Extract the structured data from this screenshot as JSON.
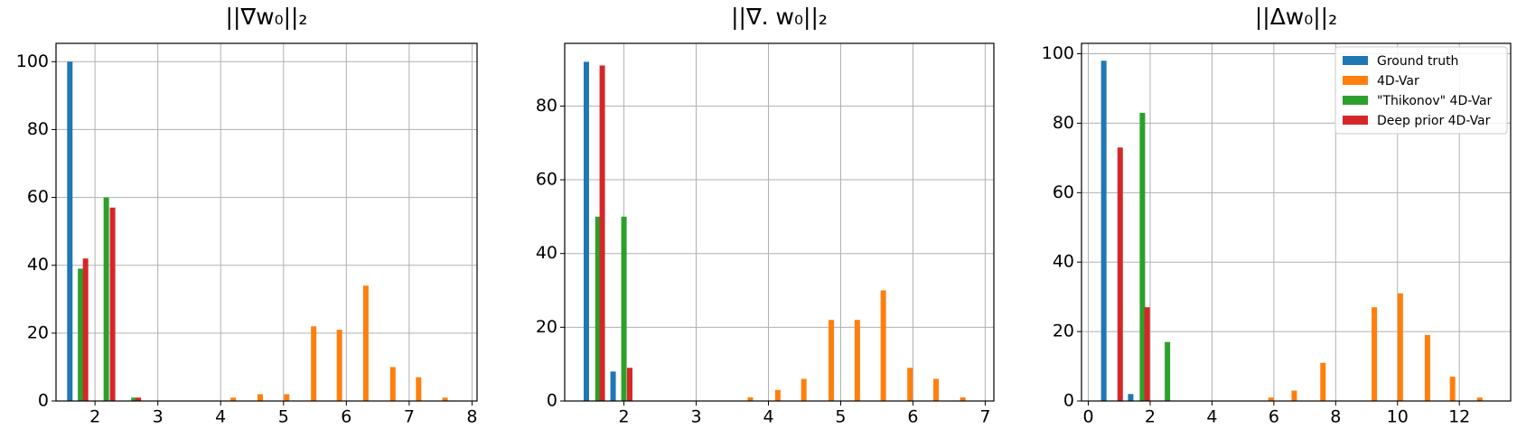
{
  "chart_data": [
    {
      "type": "bar",
      "title": "||∇w₀||₂",
      "xlim": [
        1.38,
        8.08
      ],
      "ylim": [
        0,
        105.4
      ],
      "xticks": [
        2,
        3,
        4,
        5,
        6,
        7,
        8
      ],
      "yticks": [
        0,
        20,
        40,
        60,
        80,
        100
      ],
      "grid": true,
      "series": [
        {
          "color": "#1f77b4",
          "x": [
            1.6
          ],
          "values": [
            100
          ]
        },
        {
          "color": "#ff7f0e",
          "x": [
            4.2,
            4.63,
            5.05,
            5.48,
            5.89,
            6.31,
            6.74,
            7.15,
            7.57
          ],
          "values": [
            1,
            2,
            2,
            22,
            21,
            34,
            10,
            7,
            1
          ]
        },
        {
          "color": "#2ca02c",
          "x": [
            1.77,
            2.18,
            2.62
          ],
          "values": [
            39,
            60,
            1
          ]
        },
        {
          "color": "#d62728",
          "x": [
            1.85,
            2.28,
            2.69
          ],
          "values": [
            42,
            57,
            1
          ]
        }
      ]
    },
    {
      "type": "bar",
      "title": "||∇. w₀||₂",
      "xlim": [
        1.18,
        7.12
      ],
      "ylim": [
        0,
        97
      ],
      "xticks": [
        2,
        3,
        4,
        5,
        6,
        7
      ],
      "yticks": [
        0,
        20,
        40,
        60,
        80
      ],
      "grid": true,
      "series": [
        {
          "color": "#1f77b4",
          "x": [
            1.48,
            1.85
          ],
          "values": [
            92,
            8
          ]
        },
        {
          "color": "#ff7f0e",
          "x": [
            3.75,
            4.13,
            4.49,
            4.87,
            5.23,
            5.59,
            5.96,
            6.32,
            6.69
          ],
          "values": [
            1,
            3,
            6,
            22,
            22,
            30,
            9,
            6,
            1
          ]
        },
        {
          "color": "#2ca02c",
          "x": [
            1.64,
            2.0
          ],
          "values": [
            50,
            50
          ]
        },
        {
          "color": "#d62728",
          "x": [
            1.7,
            2.08
          ],
          "values": [
            91,
            9
          ]
        }
      ]
    },
    {
      "type": "bar",
      "title": "||Δw₀||₂",
      "xlim": [
        -0.22,
        13.66
      ],
      "ylim": [
        0,
        103
      ],
      "xticks": [
        0,
        2,
        4,
        6,
        8,
        10,
        12
      ],
      "yticks": [
        0,
        20,
        40,
        60,
        80,
        100
      ],
      "grid": true,
      "legend": "upper right",
      "series": [
        {
          "name": "Ground truth",
          "color": "#1f77b4",
          "x": [
            0.5,
            1.37
          ],
          "values": [
            98,
            2
          ]
        },
        {
          "name": "4D-Var",
          "color": "#ff7f0e",
          "x": [
            5.91,
            6.66,
            7.59,
            9.25,
            10.09,
            10.97,
            11.78,
            12.66
          ],
          "values": [
            1,
            3,
            11,
            27,
            31,
            19,
            7,
            1
          ]
        },
        {
          "name": "\"Thikonov\" 4D-Var",
          "color": "#2ca02c",
          "x": [
            1.75,
            2.56
          ],
          "values": [
            83,
            17
          ]
        },
        {
          "name": "Deep prior 4D-Var",
          "color": "#d62728",
          "x": [
            1.03,
            1.9
          ],
          "values": [
            73,
            27
          ]
        }
      ]
    }
  ]
}
